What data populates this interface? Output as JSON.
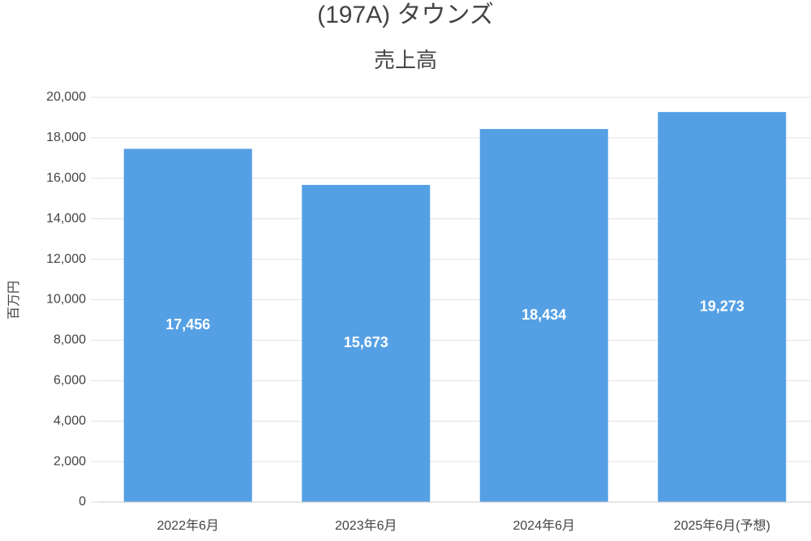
{
  "chart_data": {
    "type": "bar",
    "title": "(197A) タウンズ",
    "subtitle": "売上高",
    "y_label": "百万円",
    "categories": [
      "2022年6月",
      "2023年6月",
      "2024年6月",
      "2025年6月(予想)"
    ],
    "values": [
      17456,
      15673,
      18434,
      19273
    ],
    "value_labels": [
      "17,456",
      "15,673",
      "18,434",
      "19,273"
    ],
    "color": "#55a0e4",
    "ylim": [
      0,
      20000
    ],
    "yticks": [
      0,
      {
        "value": 2000,
        "label": "2,000"
      },
      {
        "value": 4000,
        "label": "4,000"
      },
      {
        "value": 6000,
        "label": "6,000"
      },
      {
        "value": 8000,
        "label": "8,000"
      },
      {
        "value": 10000,
        "label": "10,000"
      },
      {
        "value": 12000,
        "label": "12,000"
      },
      {
        "value": 14000,
        "label": "14,000"
      },
      {
        "value": 16000,
        "label": "16,000"
      },
      {
        "value": 18000,
        "label": "18,000"
      },
      {
        "value": 20000,
        "label": "20,000"
      }
    ],
    "grid": true
  }
}
